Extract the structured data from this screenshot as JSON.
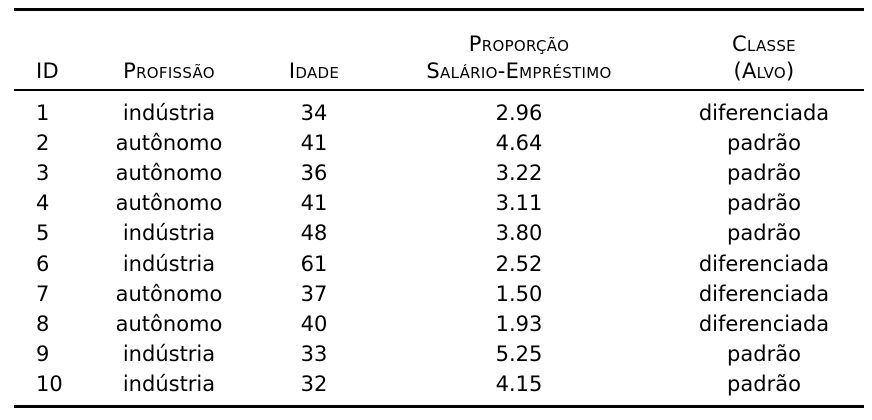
{
  "table": {
    "headers": {
      "id": "ID",
      "profissao": "Profissão",
      "idade": "Idade",
      "proporcao_line1": "Proporção",
      "proporcao_line2": "Salário-Empréstimo",
      "classe_line1": "Classe",
      "classe_line2": "(Alvo)"
    },
    "rows": [
      {
        "id": "1",
        "profissao": "indústria",
        "idade": "34",
        "proporcao": "2.96",
        "classe": "diferenciada"
      },
      {
        "id": "2",
        "profissao": "autônomo",
        "idade": "41",
        "proporcao": "4.64",
        "classe": "padrão"
      },
      {
        "id": "3",
        "profissao": "autônomo",
        "idade": "36",
        "proporcao": "3.22",
        "classe": "padrão"
      },
      {
        "id": "4",
        "profissao": "autônomo",
        "idade": "41",
        "proporcao": "3.11",
        "classe": "padrão"
      },
      {
        "id": "5",
        "profissao": "indústria",
        "idade": "48",
        "proporcao": "3.80",
        "classe": "padrão"
      },
      {
        "id": "6",
        "profissao": "indústria",
        "idade": "61",
        "proporcao": "2.52",
        "classe": "diferenciada"
      },
      {
        "id": "7",
        "profissao": "autônomo",
        "idade": "37",
        "proporcao": "1.50",
        "classe": "diferenciada"
      },
      {
        "id": "8",
        "profissao": "autônomo",
        "idade": "40",
        "proporcao": "1.93",
        "classe": "diferenciada"
      },
      {
        "id": "9",
        "profissao": "indústria",
        "idade": "33",
        "proporcao": "5.25",
        "classe": "padrão"
      },
      {
        "id": "10",
        "profissao": "indústria",
        "idade": "32",
        "proporcao": "4.15",
        "classe": "padrão"
      }
    ]
  }
}
